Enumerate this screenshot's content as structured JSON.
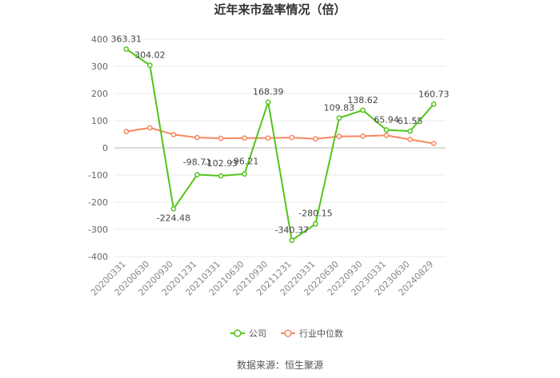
{
  "chart_data": {
    "type": "line",
    "title": "近年来市盈率情况（倍）",
    "categories": [
      "20200331",
      "20200630",
      "20200930",
      "20201231",
      "20210331",
      "20210630",
      "20210930",
      "20211231",
      "20220331",
      "20220630",
      "20220930",
      "20230331",
      "20230630",
      "20240829"
    ],
    "ylim": [
      -400,
      400
    ],
    "yticks": [
      400,
      300,
      200,
      100,
      0,
      -100,
      -200,
      -300,
      -400
    ],
    "grid": true,
    "legend_position": "bottom",
    "series": [
      {
        "name": "公司",
        "color": "#52c41a",
        "values": [
          363.31,
          304.02,
          -224.48,
          -98.71,
          -102.93,
          -96.21,
          168.39,
          -340.37,
          -280.15,
          109.83,
          138.62,
          65.94,
          61.55,
          160.73
        ],
        "labels": [
          "363.31",
          "304.02",
          "-224.48",
          "-98.71",
          "-102.93",
          "-96.21",
          "168.39",
          "-340.37",
          "-280.15",
          "109.83",
          "138.62",
          "65.94",
          "61.55",
          "160.73"
        ]
      },
      {
        "name": "行业中位数",
        "color": "#f5875f",
        "values": [
          60,
          74,
          49,
          38,
          35,
          36,
          36,
          38,
          33,
          42,
          43,
          46,
          31,
          16
        ]
      }
    ]
  },
  "source_text": "数据来源：恒生聚源"
}
